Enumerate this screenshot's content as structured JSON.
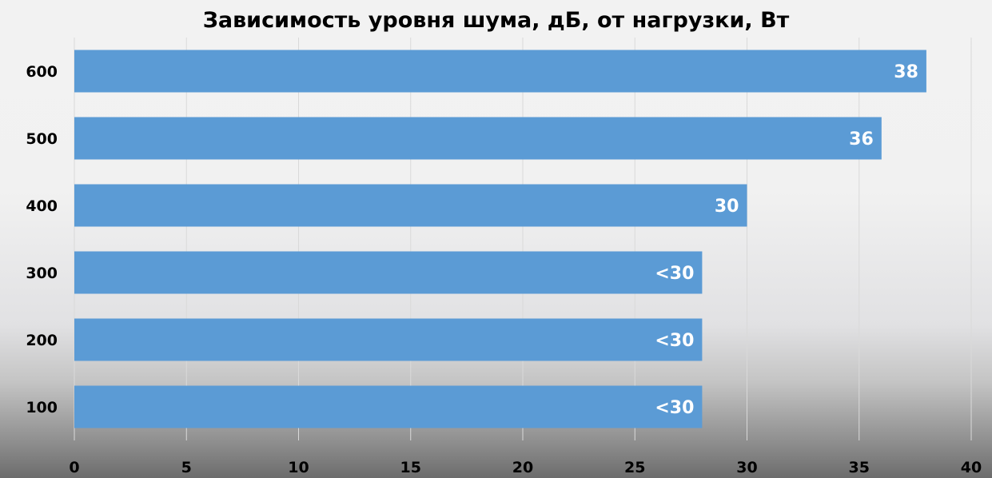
{
  "chart_data": {
    "type": "bar",
    "orientation": "horizontal",
    "title": "Зависимость уровня шума, дБ, от нагрузки, Вт",
    "categories": [
      "600",
      "500",
      "400",
      "300",
      "200",
      "100"
    ],
    "values": [
      38,
      36,
      30,
      28,
      28,
      28
    ],
    "data_labels": [
      "38",
      "36",
      "30",
      "<30",
      "<30",
      "<30"
    ],
    "xlim": [
      0,
      40
    ],
    "x_ticks": [
      "0",
      "5",
      "10",
      "15",
      "20",
      "25",
      "30",
      "35",
      "40"
    ],
    "xlabel": "",
    "ylabel": "",
    "grid": true,
    "legend": "none",
    "bar_color": "#5b9bd5"
  }
}
